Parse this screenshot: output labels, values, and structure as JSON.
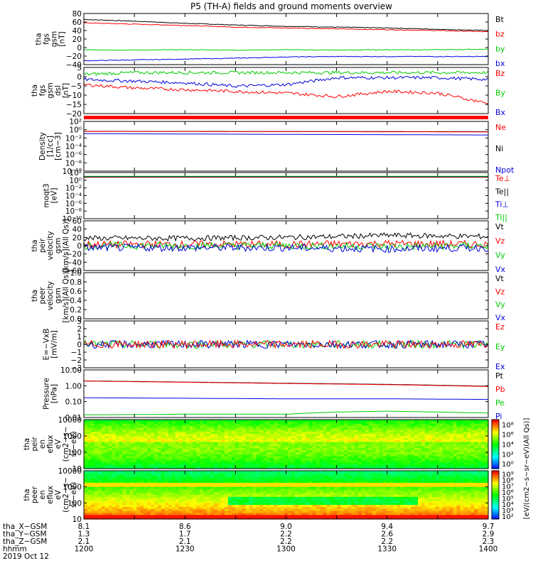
{
  "title": "P5 (TH-A) fields and ground moments overview",
  "colors": {
    "black": "#000000",
    "red": "#ff0000",
    "green": "#00cc00",
    "blue": "#0000dd"
  },
  "chart_data": [
    {
      "type": "line",
      "id": "fgs_gsm",
      "ylabel": [
        "tha",
        "fgs",
        "gsm",
        "[nT]"
      ],
      "yticks": [
        "80",
        "60",
        "40",
        "20",
        "0",
        "−20",
        "−40"
      ],
      "ylim": [
        -40,
        80
      ],
      "legend": [
        {
          "name": "Bt",
          "color": "black"
        },
        {
          "name": "bz",
          "color": "red"
        },
        {
          "name": "by",
          "color": "green"
        },
        {
          "name": "bx",
          "color": "blue"
        }
      ],
      "series": [
        {
          "name": "Bt",
          "color": "black",
          "x": [
            1200,
            1215,
            1230,
            1245,
            1300,
            1315,
            1330,
            1345,
            1400
          ],
          "values": [
            66,
            62,
            57,
            53,
            50,
            48,
            46,
            43,
            40
          ]
        },
        {
          "name": "bz",
          "color": "red",
          "x": [
            1200,
            1215,
            1230,
            1245,
            1300,
            1315,
            1330,
            1345,
            1400
          ],
          "values": [
            58,
            55,
            52,
            48,
            46,
            44,
            42,
            40,
            37
          ]
        },
        {
          "name": "by",
          "color": "green",
          "x": [
            1200,
            1215,
            1230,
            1245,
            1300,
            1315,
            1330,
            1345,
            1400
          ],
          "values": [
            -5,
            -6,
            -5,
            -6,
            -5,
            -6,
            -5,
            -5,
            -4
          ]
        },
        {
          "name": "bx",
          "color": "blue",
          "x": [
            1200,
            1215,
            1230,
            1245,
            1300,
            1315,
            1330,
            1345,
            1400
          ],
          "values": [
            -31,
            -29,
            -27,
            -25,
            -22,
            -21,
            -21,
            -21,
            -21
          ]
        }
      ]
    },
    {
      "type": "line",
      "id": "fgs_dsl",
      "ylabel": [
        "tha",
        "fgs",
        "gsm",
        "dsl",
        "[nT]"
      ],
      "yticks": [
        "5",
        "0",
        "−5",
        "−10",
        "−15",
        "−20"
      ],
      "ylim": [
        -22,
        5
      ],
      "legend": [
        {
          "name": "Bz",
          "color": "red"
        },
        {
          "name": "By",
          "color": "green"
        },
        {
          "name": "Bx",
          "color": "blue"
        }
      ],
      "series": [
        {
          "name": "By",
          "color": "green",
          "x": [
            1200,
            1215,
            1230,
            1245,
            1300,
            1315,
            1330,
            1345,
            1400
          ],
          "values": [
            1,
            2,
            2,
            2,
            2,
            2,
            2,
            2,
            2
          ]
        },
        {
          "name": "Bx",
          "color": "blue",
          "x": [
            1200,
            1215,
            1230,
            1245,
            1300,
            1315,
            1330,
            1345,
            1400
          ],
          "values": [
            -2,
            -3,
            -4,
            -6,
            -5,
            -1,
            -1,
            -1,
            -2
          ]
        },
        {
          "name": "Bz",
          "color": "red",
          "x": [
            1200,
            1215,
            1230,
            1245,
            1300,
            1315,
            1330,
            1345,
            1400
          ],
          "values": [
            -5,
            -7,
            -8,
            -9,
            -10,
            -12,
            -9,
            -10,
            -16
          ]
        }
      ]
    },
    {
      "type": "line",
      "id": "density",
      "logscale": true,
      "ylabel": [
        "Density",
        "[1/cc]",
        "[cm−3]"
      ],
      "yticks": [
        "10²",
        "10⁰",
        "10⁻²",
        "10⁻⁴",
        "10⁻⁶",
        "10⁻⁸",
        "10⁻¹⁰"
      ],
      "ylim": [
        1e-12,
        1000
      ],
      "legend": [
        {
          "name": "Ne",
          "color": "red"
        },
        {
          "name": "Ni",
          "color": "black"
        },
        {
          "name": "Npot",
          "color": "blue"
        }
      ],
      "series": [
        {
          "name": "Ni",
          "color": "black",
          "x": [
            1200,
            1300,
            1400
          ],
          "values": [
            1,
            0.9,
            0.8
          ]
        },
        {
          "name": "Ne",
          "color": "red",
          "x": [
            1200,
            1300,
            1400
          ],
          "values": [
            0.9,
            0.8,
            0.7
          ]
        },
        {
          "name": "Npot",
          "color": "blue",
          "x": [
            1200,
            1300,
            1400
          ],
          "values": [
            0.2,
            0.12,
            0.08
          ]
        }
      ]
    },
    {
      "type": "line",
      "id": "temperature",
      "logscale": true,
      "ylabel": [
        "moqt3",
        "[eV]"
      ],
      "yticks": [
        "10²",
        "10⁰",
        "10⁻²",
        "10⁻⁴",
        "10⁻⁶",
        "10⁻⁸",
        "10⁻¹⁰"
      ],
      "ylim": [
        1e-12,
        1000
      ],
      "legend": [
        {
          "name": "Te⊥",
          "color": "red"
        },
        {
          "name": "Te||",
          "color": "black"
        },
        {
          "name": "Ti⊥",
          "color": "blue"
        },
        {
          "name": "Ti||",
          "color": "green"
        }
      ],
      "series": [
        {
          "name": "Te⊥",
          "color": "red",
          "x": [
            1200,
            1300,
            1400
          ],
          "values": [
            30,
            30,
            30
          ]
        },
        {
          "name": "Te||",
          "color": "black",
          "x": [
            1200,
            1300,
            1400
          ],
          "values": [
            40,
            40,
            40
          ]
        },
        {
          "name": "Ti⊥",
          "color": "blue",
          "x": [
            1200,
            1300,
            1400
          ],
          "values": [
            50,
            50,
            50
          ]
        },
        {
          "name": "Ti||",
          "color": "green",
          "x": [
            1200,
            1300,
            1400
          ],
          "values": [
            60,
            60,
            60
          ]
        }
      ]
    },
    {
      "type": "line",
      "id": "peir_velocity",
      "ylabel": [
        "tha",
        "peir",
        "velocity",
        "gsm",
        "[km/s](All Qs)]"
      ],
      "yticks": [
        "60",
        "40",
        "20",
        "0",
        "−20",
        "−40",
        "−60"
      ],
      "ylim": [
        -60,
        60
      ],
      "legend": [
        {
          "name": "Vt",
          "color": "black"
        },
        {
          "name": "Vz",
          "color": "red"
        },
        {
          "name": "Vy",
          "color": "green"
        },
        {
          "name": "Vx",
          "color": "blue"
        }
      ],
      "series": [
        {
          "name": "Vt",
          "color": "black",
          "x": [
            1200,
            1230,
            1300,
            1315,
            1330,
            1400
          ],
          "values": [
            18,
            18,
            20,
            22,
            25,
            22
          ]
        },
        {
          "name": "Vz",
          "color": "red",
          "x": [
            1200,
            1230,
            1300,
            1330,
            1400
          ],
          "values": [
            3,
            3,
            3,
            5,
            3
          ]
        },
        {
          "name": "Vy",
          "color": "green",
          "x": [
            1200,
            1230,
            1300,
            1330,
            1400
          ],
          "values": [
            0,
            0,
            0,
            -2,
            0
          ]
        },
        {
          "name": "Vx",
          "color": "blue",
          "x": [
            1200,
            1230,
            1300,
            1330,
            1400
          ],
          "values": [
            -5,
            -5,
            -5,
            -8,
            -5
          ]
        }
      ]
    },
    {
      "type": "line",
      "id": "peer_velocity",
      "ylabel": [
        "tha",
        "peer",
        "velocity",
        "gsm",
        "[km/s](All Qs)]"
      ],
      "yticks": [
        "1.0",
        "0.8",
        "0.6",
        "0.4",
        "0.2",
        "0.0"
      ],
      "ylim": [
        0,
        1
      ],
      "legend": [
        {
          "name": "Vt",
          "color": "black"
        },
        {
          "name": "Vz",
          "color": "red"
        },
        {
          "name": "Vy",
          "color": "green"
        },
        {
          "name": "Vx",
          "color": "blue"
        }
      ],
      "series": []
    },
    {
      "type": "line",
      "id": "efield",
      "ylabel": [
        "E=−VxB",
        "[mV/m]"
      ],
      "yticks": [
        "3",
        "2",
        "1",
        "0",
        "−1",
        "−2",
        "−3"
      ],
      "ylim": [
        -3,
        3
      ],
      "legend": [
        {
          "name": "Ez",
          "color": "red"
        },
        {
          "name": "Ey",
          "color": "green"
        },
        {
          "name": "Ex",
          "color": "blue"
        }
      ],
      "series": [
        {
          "name": "Ey",
          "color": "green",
          "x": [
            1200,
            1230,
            1300,
            1315,
            1330,
            1400
          ],
          "values": [
            0,
            0,
            0,
            0,
            0,
            0
          ]
        },
        {
          "name": "Ex",
          "color": "blue",
          "x": [
            1200,
            1230,
            1300,
            1315,
            1330,
            1400
          ],
          "values": [
            0,
            0,
            0,
            0,
            0,
            0
          ]
        },
        {
          "name": "Ez",
          "color": "red",
          "x": [
            1200,
            1230,
            1300,
            1315,
            1330,
            1400
          ],
          "values": [
            0,
            0,
            0,
            0,
            0,
            0
          ]
        }
      ]
    },
    {
      "type": "line",
      "id": "pressure",
      "logscale": true,
      "ylabel": [
        "Pressure",
        "[nPa]"
      ],
      "yticks": [
        "10.00",
        "1.00",
        "0.10",
        "0.01"
      ],
      "ylim": [
        0.006,
        10
      ],
      "legend": [
        {
          "name": "Pt",
          "color": "black"
        },
        {
          "name": "Pb",
          "color": "red"
        },
        {
          "name": "Pe",
          "color": "green"
        },
        {
          "name": "Pi",
          "color": "blue"
        }
      ],
      "series": [
        {
          "name": "Pt",
          "color": "black",
          "x": [
            1200,
            1230,
            1300,
            1330,
            1400
          ],
          "values": [
            1.8,
            1.5,
            1.25,
            1.05,
            0.78
          ]
        },
        {
          "name": "Pb",
          "color": "red",
          "x": [
            1200,
            1230,
            1300,
            1330,
            1400
          ],
          "values": [
            1.75,
            1.45,
            1.2,
            1.0,
            0.75
          ]
        },
        {
          "name": "Pi",
          "color": "blue",
          "x": [
            1200,
            1230,
            1300,
            1330,
            1400
          ],
          "values": [
            0.13,
            0.12,
            0.11,
            0.11,
            0.1
          ]
        },
        {
          "name": "Pe",
          "color": "green",
          "x": [
            1200,
            1230,
            1300,
            1315,
            1330,
            1400
          ],
          "values": [
            0.009,
            0.01,
            0.01,
            0.014,
            0.016,
            0.012
          ]
        }
      ]
    },
    {
      "type": "heatmap",
      "id": "peir_eflux",
      "ylabel": [
        "tha",
        "peir",
        "en",
        "eflux",
        "eV",
        "(cm2−s−",
        "sr−eV)"
      ],
      "yticks": [
        "10000",
        "1000",
        "100",
        "10"
      ],
      "ylim": [
        5,
        25000
      ],
      "logscale": true
    },
    {
      "type": "heatmap",
      "id": "peer_eflux",
      "ylabel": [
        "tha",
        "peer",
        "en",
        "eflux",
        "eV",
        "(cm2−s−",
        "sr−eV)"
      ],
      "yticks": [
        "10000",
        "1000",
        "100",
        "10"
      ],
      "ylim": [
        5,
        25000
      ],
      "logscale": true
    }
  ],
  "colorbar": {
    "label": "[eV/(cm2−s−sr−eV)(All Qs)]",
    "ticks_upper": [
      "10⁸",
      "10⁶",
      "10⁴",
      "10²",
      "10⁰"
    ],
    "ticks_lower": [
      "10⁹",
      "10⁸",
      "10⁷",
      "10⁶",
      "10⁵",
      "10⁴",
      "10³",
      "10²"
    ]
  },
  "xaxis": {
    "ticks": [
      1200,
      1230,
      1300,
      1330,
      1400
    ],
    "rows": [
      {
        "label": "tha_X−GSM",
        "values": [
          "8.1",
          "8.6",
          "9.0",
          "9.4",
          "9.7"
        ]
      },
      {
        "label": "tha_Y−GSM",
        "values": [
          "1.3",
          "1.7",
          "2.2",
          "2.6",
          "2.9"
        ]
      },
      {
        "label": "tha_Z−GSM",
        "values": [
          "2.1",
          "2.1",
          "2.2",
          "2.2",
          "2.3"
        ]
      },
      {
        "label": "hhmm",
        "values": [
          "1200",
          "1230",
          "1300",
          "1330",
          "1400"
        ]
      }
    ],
    "date": "2019 Oct 12"
  }
}
